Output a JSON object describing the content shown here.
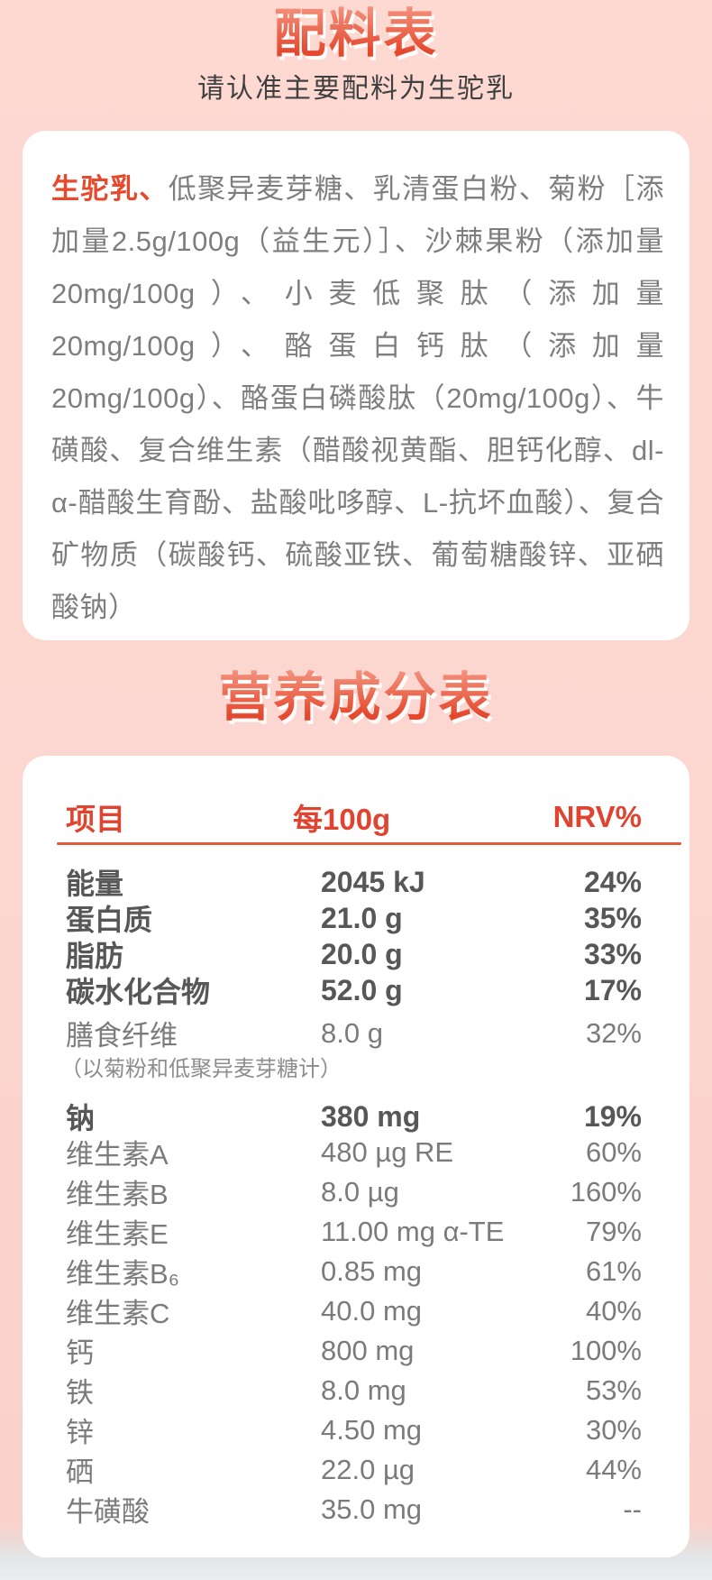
{
  "colors": {
    "accent_red": "#e4492e",
    "header_red": "#e04431",
    "highlight_red": "#e7492d",
    "divider_orange": "#e4583b",
    "body_gray": "#7b7b7b",
    "bold_gray": "#575757",
    "bg_pink": "#fcd6cf",
    "bottom_strip": "#e2e6e9",
    "card_white": "#ffffff"
  },
  "ingredients_section": {
    "title": "配料表",
    "subtitle": "请认准主要配料为生驼乳",
    "highlight": "生驼乳、",
    "text": "低聚异麦芽糖、乳清蛋白粉、菊粉［添加量2.5g/100g（益生元）］、沙棘果粉（添加量20mg/100g）、小麦低聚肽（添加量20mg/100g）、酪蛋白钙肽（添加量20mg/100g）、酪蛋白磷酸肽（20mg/100g）、牛磺酸、复合维生素（醋酸视黄酯、胆钙化醇、dl-α-醋酸生育酚、盐酸吡哆醇、L-抗坏血酸）、复合矿物质（碳酸钙、硫酸亚铁、葡萄糖酸锌、亚硒酸钠）"
  },
  "nutrition_section": {
    "title": "营养成分表",
    "columns": [
      "项目",
      "每100g",
      "NRV%"
    ],
    "rows": [
      {
        "item": "能量",
        "per100g": "2045 kJ",
        "nrv": "24%",
        "bold": true
      },
      {
        "item": "蛋白质",
        "per100g": "21.0 g",
        "nrv": "35%",
        "bold": true
      },
      {
        "item": "脂肪",
        "per100g": "20.0 g",
        "nrv": "33%",
        "bold": true
      },
      {
        "item": "碳水化合物",
        "per100g": "52.0 g",
        "nrv": "17%",
        "bold": true
      },
      {
        "item": "膳食纤维",
        "per100g": "8.0 g",
        "nrv": "32%"
      },
      {
        "item": "（以菊粉和低聚异麦芽糖计）",
        "per100g": "",
        "nrv": "",
        "note": true
      },
      {
        "item": "钠",
        "per100g": "380 mg",
        "nrv": "19%",
        "bold": true
      },
      {
        "item": "维生素A",
        "per100g": "480 µg RE",
        "nrv": "60%"
      },
      {
        "item": "维生素B",
        "per100g": "8.0 µg",
        "nrv": "160%"
      },
      {
        "item": "维生素E",
        "per100g": "11.00 mg α-TE",
        "nrv": "79%"
      },
      {
        "item": "维生素B₆",
        "per100g": "0.85 mg",
        "nrv": "61%"
      },
      {
        "item": "维生素C",
        "per100g": "40.0 mg",
        "nrv": "40%"
      },
      {
        "item": "钙",
        "per100g": "800 mg",
        "nrv": "100%"
      },
      {
        "item": "铁",
        "per100g": "8.0 mg",
        "nrv": "53%"
      },
      {
        "item": "锌",
        "per100g": "4.50 mg",
        "nrv": "30%"
      },
      {
        "item": "硒",
        "per100g": "22.0 µg",
        "nrv": "44%"
      },
      {
        "item": "牛磺酸",
        "per100g": "35.0 mg",
        "nrv": "--"
      }
    ]
  }
}
